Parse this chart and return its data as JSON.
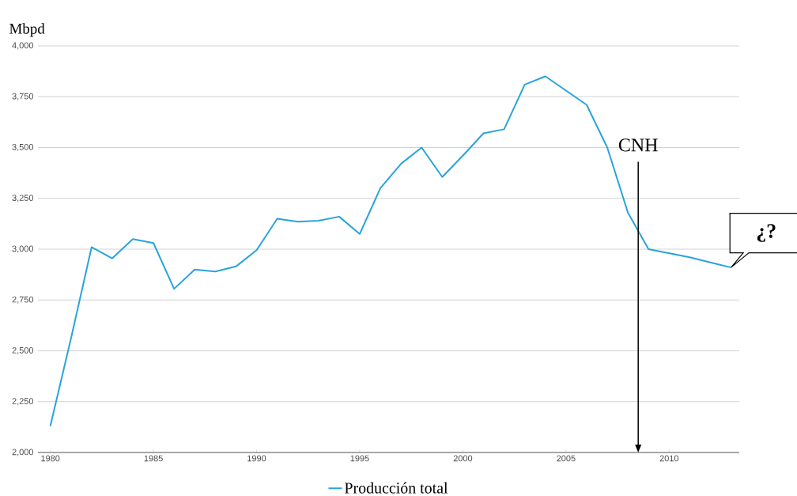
{
  "chart_data": {
    "type": "line",
    "ylabel": "Mbpd",
    "x": [
      1980,
      1981,
      1982,
      1983,
      1984,
      1985,
      1986,
      1987,
      1988,
      1989,
      1990,
      1991,
      1992,
      1993,
      1994,
      1995,
      1996,
      1997,
      1998,
      1999,
      2000,
      2001,
      2002,
      2003,
      2004,
      2005,
      2006,
      2007,
      2008,
      2009,
      2010,
      2011,
      2012,
      2013
    ],
    "series": [
      {
        "name": "Producción total",
        "color": "#29a3dc",
        "values": [
          2130,
          2560,
          3010,
          2955,
          3050,
          3030,
          2805,
          2900,
          2890,
          2915,
          2995,
          3150,
          3135,
          3140,
          3160,
          3075,
          3300,
          3420,
          3500,
          3355,
          3460,
          3570,
          3590,
          3810,
          3850,
          3780,
          3710,
          3500,
          3180,
          3000,
          2980,
          2960,
          2935,
          2910
        ]
      }
    ],
    "xlim": [
      1979.4,
      2013.4
    ],
    "ylim": [
      2000,
      4000
    ],
    "xticks": [
      1980,
      1985,
      1990,
      1995,
      2000,
      2005,
      2010
    ],
    "yticks": [
      {
        "value": 2000,
        "label": "2,000"
      },
      {
        "value": 2250,
        "label": "2,250"
      },
      {
        "value": 2500,
        "label": "2,500"
      },
      {
        "value": 2750,
        "label": "2,750"
      },
      {
        "value": 3000,
        "label": "3,000"
      },
      {
        "value": 3250,
        "label": "3,250"
      },
      {
        "value": 3500,
        "label": "3,500"
      },
      {
        "value": 3750,
        "label": "3,750"
      },
      {
        "value": 4000,
        "label": "4,000"
      }
    ],
    "ref_lines": [
      {
        "axis": "x",
        "value": 2008.5,
        "label": "CNH",
        "color": "#000000"
      }
    ],
    "annotations": [
      {
        "text": "¿?",
        "x": 2013,
        "y": 2910
      }
    ],
    "grid": "y",
    "legend": "bottom",
    "line_style": "solid"
  }
}
